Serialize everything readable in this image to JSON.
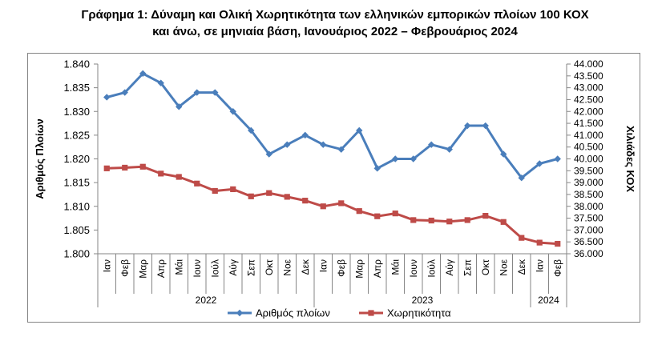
{
  "title_line1": "Γράφημα 1: Δύναμη και Ολική Χωρητικότητα των ελληνικών εμπορικών πλοίων 100 ΚΟΧ",
  "title_line2": "και άνω, σε μηνιαία βάση, Ιανουάριος 2022 – Φεβρουάριος 2024",
  "chart_data": {
    "type": "line",
    "title": "Γράφημα 1: Δύναμη και Ολική Χωρητικότητα των ελληνικών εμπορικών πλοίων 100 ΚΟΧ και άνω, σε μηνιαία βάση, Ιανουάριος 2022 – Φεβρουάριος 2024",
    "categories": [
      "Ιαν",
      "Φεβ",
      "Μαρ",
      "Απρ",
      "Μάι",
      "Ιουν",
      "Ιούλ",
      "Αύγ",
      "Σεπ",
      "Οκτ",
      "Νοε",
      "Δεκ",
      "Ιαν",
      "Φεβ",
      "Μαρ",
      "Απρ",
      "Μάι",
      "Ιουν",
      "Ιούλ",
      "Αύγ",
      "Σεπ",
      "Οκτ",
      "Νοε",
      "Δεκ",
      "Ιαν",
      "Φεβ"
    ],
    "years": [
      {
        "label": "2022",
        "start": 0,
        "end": 11
      },
      {
        "label": "2023",
        "start": 12,
        "end": 23
      },
      {
        "label": "2024",
        "start": 24,
        "end": 25
      }
    ],
    "ylabel_left": "Αριθμός Πλοίων",
    "ylabel_right": "Χιλιάδες ΚΟΧ",
    "ylim_left": [
      1800,
      1840
    ],
    "ylim_right": [
      36000,
      44000
    ],
    "yticks_left": [
      "1.800",
      "1.805",
      "1.810",
      "1.815",
      "1.820",
      "1.825",
      "1.830",
      "1.835",
      "1.840"
    ],
    "yticks_right": [
      "36.000",
      "36.500",
      "37.000",
      "37.500",
      "38.000",
      "38.500",
      "39.000",
      "39.500",
      "40.000",
      "40.500",
      "41.000",
      "41.500",
      "42.000",
      "42.500",
      "43.000",
      "43.500",
      "44.000"
    ],
    "grid": false,
    "legend_position": "bottom",
    "series": [
      {
        "name": "Αριθμός πλοίων",
        "axis": "left",
        "color": "#4a7ebb",
        "marker": "diamond",
        "values": [
          1833,
          1834,
          1838,
          1836,
          1831,
          1834,
          1834,
          1830,
          1826,
          1821,
          1823,
          1825,
          1823,
          1822,
          1826,
          1818,
          1820,
          1820,
          1823,
          1822,
          1827,
          1827,
          1821,
          1816,
          1819,
          1820
        ]
      },
      {
        "name": "Χωρητικότητα",
        "axis": "right",
        "color": "#be4b48",
        "marker": "square",
        "values": [
          39600,
          39630,
          39670,
          39380,
          39240,
          38960,
          38650,
          38720,
          38420,
          38560,
          38400,
          38240,
          38000,
          38130,
          37800,
          37580,
          37700,
          37420,
          37400,
          37360,
          37420,
          37600,
          37340,
          36670,
          36470,
          36420
        ]
      }
    ]
  }
}
